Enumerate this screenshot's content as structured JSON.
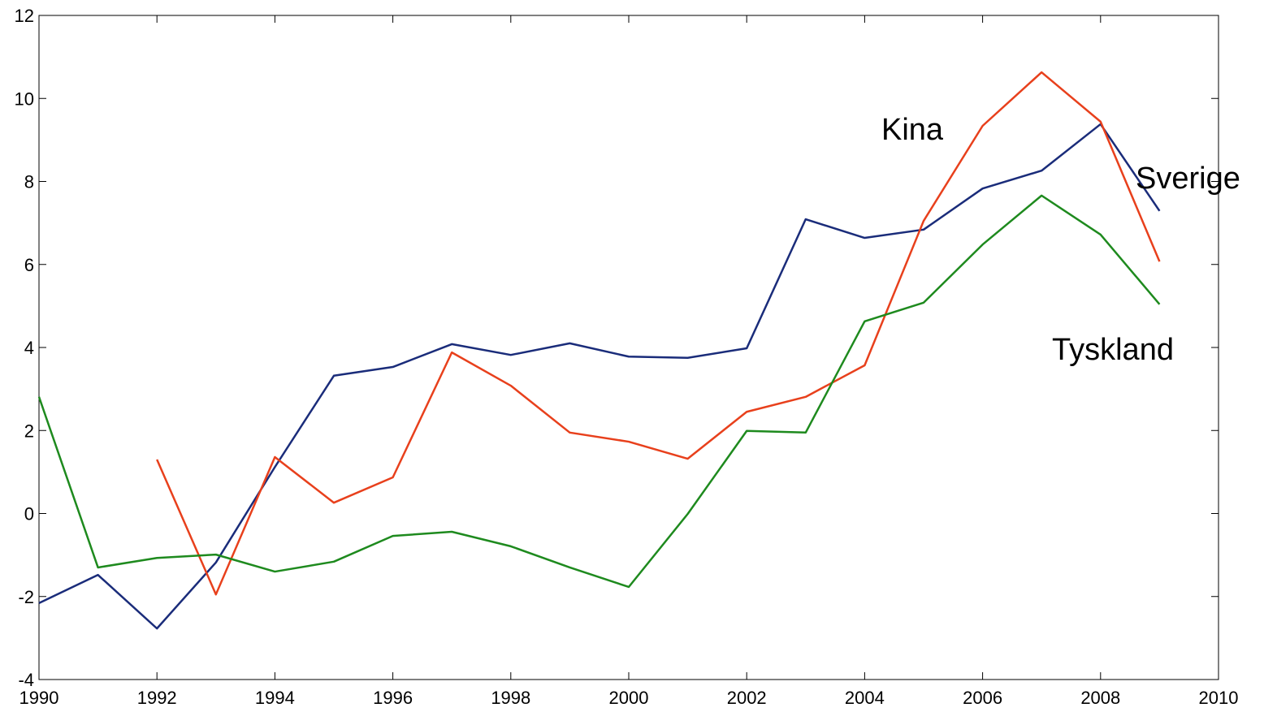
{
  "chart_data": {
    "type": "line",
    "x": [
      1990,
      1991,
      1992,
      1993,
      1994,
      1995,
      1996,
      1997,
      1998,
      1999,
      2000,
      2001,
      2002,
      2003,
      2004,
      2005,
      2006,
      2007,
      2008,
      2009
    ],
    "series": [
      {
        "name": "Sverige",
        "color": "#1a2c7a",
        "values": [
          -2.16,
          -1.48,
          -2.77,
          -1.18,
          1.12,
          3.32,
          3.53,
          4.08,
          3.82,
          4.1,
          3.78,
          3.75,
          3.98,
          7.09,
          6.64,
          6.84,
          7.83,
          8.26,
          9.38,
          7.29
        ]
      },
      {
        "name": "Kina",
        "color": "#e8401c",
        "values": [
          null,
          null,
          1.3,
          -1.95,
          1.36,
          0.26,
          0.87,
          3.88,
          3.08,
          1.95,
          1.73,
          1.32,
          2.45,
          2.81,
          3.57,
          7.05,
          9.34,
          10.63,
          9.44,
          6.07
        ]
      },
      {
        "name": "Tyskland",
        "color": "#1e8a1e",
        "values": [
          2.81,
          -1.3,
          -1.07,
          -0.99,
          -1.4,
          -1.16,
          -0.54,
          -0.44,
          -0.79,
          -1.3,
          -1.77,
          -0.01,
          1.99,
          1.95,
          4.63,
          5.08,
          6.48,
          7.66,
          6.72,
          5.04
        ]
      }
    ],
    "xlim": [
      1990,
      2010
    ],
    "xticks": [
      1990,
      1992,
      1994,
      1996,
      1998,
      2000,
      2002,
      2004,
      2006,
      2008,
      2010
    ],
    "ylim": [
      -4,
      12
    ],
    "yticks": [
      -4,
      -2,
      0,
      2,
      4,
      6,
      8,
      10,
      12
    ],
    "grid": false
  }
}
